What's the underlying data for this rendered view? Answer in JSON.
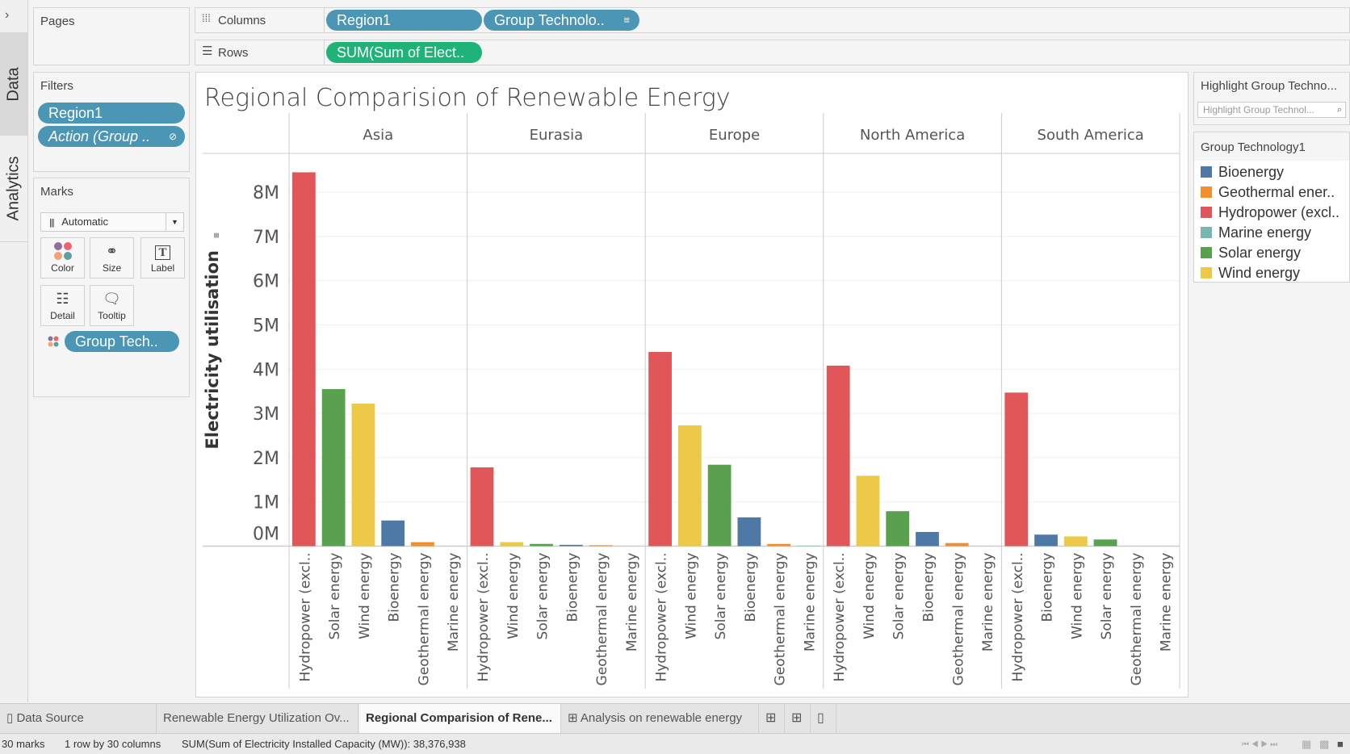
{
  "left_strip": {
    "expand_icon": "chevron-right-icon",
    "tabs": [
      "Data",
      "Analytics"
    ]
  },
  "pages": {
    "title": "Pages"
  },
  "shelves": {
    "columns_label": "Columns",
    "columns_pills": [
      "Region1",
      "Group Technolo.."
    ],
    "rows_label": "Rows",
    "rows_pills": [
      "SUM(Sum of Elect.."
    ]
  },
  "filters": {
    "title": "Filters",
    "items": [
      "Region1",
      "Action (Group .."
    ]
  },
  "marks": {
    "title": "Marks",
    "type": "Automatic",
    "buttons": [
      "Color",
      "Size",
      "Label",
      "Detail",
      "Tooltip"
    ],
    "color_pill": "Group Tech.."
  },
  "highlight": {
    "title": "Highlight Group Techno...",
    "placeholder": "Highlight Group Technol..."
  },
  "legend": {
    "title": "Group Technology1",
    "items": [
      {
        "label": "Bioenergy",
        "color": "#4e79a7"
      },
      {
        "label": "Geothermal ener..",
        "color": "#f28e2b"
      },
      {
        "label": "Hydropower (excl..",
        "color": "#e15759"
      },
      {
        "label": "Marine energy",
        "color": "#76b7b2"
      },
      {
        "label": "Solar energy",
        "color": "#59a14f"
      },
      {
        "label": "Wind energy",
        "color": "#edc948"
      }
    ]
  },
  "tabs": {
    "data_source": "Data Source",
    "sheets": [
      "Renewable Energy Utilization Ov...",
      "Regional Comparision of Rene...",
      "Analysis on renewable energy"
    ],
    "active": 1
  },
  "status": {
    "marks": "30 marks",
    "dims": "1 row by 30 columns",
    "sum": "SUM(Sum of Electricity Installed Capacity (MW)): 38,376,938"
  },
  "chart_data": {
    "type": "bar",
    "title": "Regional Comparision of Renewable Energy",
    "ylabel": "Electricity utilisation",
    "ylim": [
      0,
      8.8
    ],
    "yunit": "M",
    "yticks": [
      "0M",
      "1M",
      "2M",
      "3M",
      "4M",
      "5M",
      "6M",
      "7M",
      "8M"
    ],
    "grid": true,
    "colors": {
      "Bioenergy": "#4e79a7",
      "Geothermal energy": "#f28e2b",
      "Hydropower (excl..": "#e15759",
      "Marine energy": "#76b7b2",
      "Solar energy": "#59a14f",
      "Wind energy": "#edc948"
    },
    "panels": [
      {
        "region": "Asia",
        "categories": [
          "Hydropower (excl..",
          "Solar energy",
          "Wind energy",
          "Bioenergy",
          "Geothermal energy",
          "Marine energy"
        ],
        "values": [
          8.45,
          3.55,
          3.22,
          0.58,
          0.09,
          0.0
        ]
      },
      {
        "region": "Eurasia",
        "categories": [
          "Hydropower (excl..",
          "Wind energy",
          "Solar energy",
          "Bioenergy",
          "Geothermal energy",
          "Marine energy"
        ],
        "values": [
          1.78,
          0.09,
          0.05,
          0.03,
          0.02,
          0.0
        ]
      },
      {
        "region": "Europe",
        "categories": [
          "Hydropower (excl..",
          "Wind energy",
          "Solar energy",
          "Bioenergy",
          "Geothermal energy",
          "Marine energy"
        ],
        "values": [
          4.39,
          2.73,
          1.84,
          0.65,
          0.05,
          0.01
        ]
      },
      {
        "region": "North America",
        "categories": [
          "Hydropower (excl..",
          "Wind energy",
          "Solar energy",
          "Bioenergy",
          "Geothermal energy",
          "Marine energy"
        ],
        "values": [
          4.08,
          1.59,
          0.79,
          0.32,
          0.07,
          0.0
        ]
      },
      {
        "region": "South America",
        "categories": [
          "Hydropower (excl..",
          "Bioenergy",
          "Wind energy",
          "Solar energy",
          "Geothermal energy",
          "Marine energy"
        ],
        "values": [
          3.47,
          0.26,
          0.22,
          0.15,
          0.0,
          0.0
        ]
      }
    ]
  }
}
